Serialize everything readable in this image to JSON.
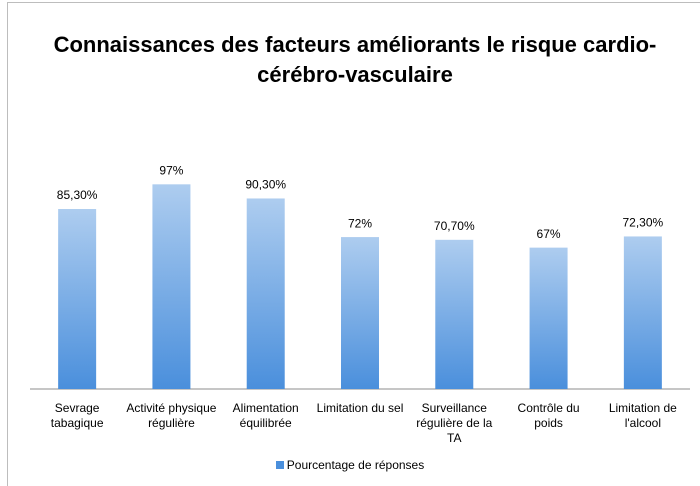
{
  "chart_data": {
    "type": "bar",
    "title": "Connaissances des facteurs améliorants le risque cardio-cérébro-vasculaire",
    "categories": [
      "Sevrage tabagique",
      "Activité physique régulière",
      "Alimentation équilibrée",
      "Limitation du sel",
      "Surveillance régulière de la TA",
      "Contrôle du poids",
      "Limitation de l'alcool"
    ],
    "series": [
      {
        "name": "Pourcentage de réponses",
        "color": "#4a8fdc",
        "values": [
          85.3,
          97,
          90.3,
          72,
          70.7,
          67,
          72.3
        ],
        "value_labels": [
          "85,30%",
          "97%",
          "90,30%",
          "72%",
          "70,70%",
          "67%",
          "72,30%"
        ]
      }
    ],
    "ylim": [
      0,
      100
    ],
    "legend": "bottom"
  }
}
